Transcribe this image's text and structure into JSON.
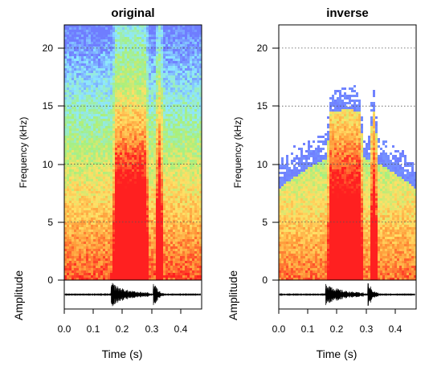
{
  "chart_data": [
    {
      "type": "heatmap",
      "title": "original",
      "xlabel": "Time (s)",
      "ylabel": "Frequency (kHz)",
      "amplitude_label": "Amplitude",
      "xlim": [
        0,
        0.47
      ],
      "ylim": [
        0,
        22
      ],
      "x_ticks": [
        "0.0",
        "0.1",
        "0.2",
        "0.3",
        "0.4"
      ],
      "y_ticks": [
        "0",
        "5",
        "10",
        "15",
        "20"
      ],
      "grid": "dotted horizontal at y ticks",
      "colormap": [
        "#ff2020",
        "#ff9a3a",
        "#ffe066",
        "#a8f07c",
        "#8ee8ff",
        "#6f7dff"
      ],
      "calls": [
        {
          "start": 0.165,
          "end": 0.29,
          "max_freq": 17
        },
        {
          "start": 0.31,
          "end": 0.34,
          "max_freq": 18
        }
      ]
    },
    {
      "type": "heatmap",
      "title": "inverse",
      "xlabel": "Time (s)",
      "ylabel": "Frequency (kHz)",
      "amplitude_label": "Amplitude",
      "xlim": [
        0,
        0.47
      ],
      "ylim": [
        0,
        22
      ],
      "x_ticks": [
        "0.0",
        "0.1",
        "0.2",
        "0.3",
        "0.4"
      ],
      "y_ticks": [
        "0",
        "5",
        "10",
        "15",
        "20"
      ],
      "grid": "dotted horizontal at y ticks",
      "colormap": [
        "#ff2020",
        "#ff9a3a",
        "#ffe066",
        "#a8f07c",
        "#8ee8ff",
        "#6f7dff"
      ],
      "calls": [
        {
          "start": 0.165,
          "end": 0.29,
          "max_freq": 17
        },
        {
          "start": 0.31,
          "end": 0.34,
          "max_freq": 18
        }
      ]
    }
  ]
}
